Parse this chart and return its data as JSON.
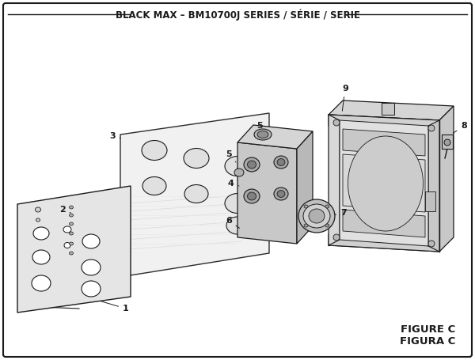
{
  "title": "BLACK MAX – BM10700J SERIES / SÉRIE / SERIE",
  "figure_label_1": "FIGURE C",
  "figure_label_2": "FIGURA C",
  "bg_color": "#ffffff",
  "lc": "#1a1a1a",
  "fc_light": "#e8e8e8",
  "fc_mid": "#d0d0d0",
  "fc_dark": "#b0b0b0",
  "fc_white": "#ffffff",
  "title_fontsize": 8.5,
  "label_fontsize": 8,
  "fig_label_fontsize": 9.5
}
